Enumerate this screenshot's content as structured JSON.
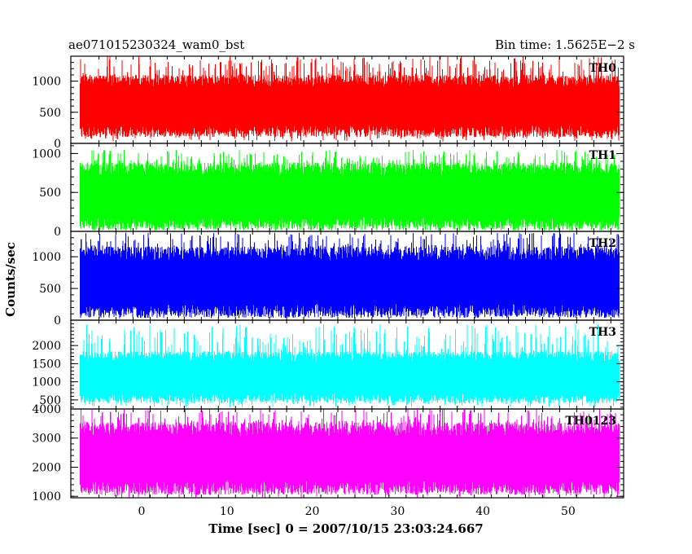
{
  "chart_data": {
    "type": "line",
    "title_left": "ae071015230324_wam0_bst",
    "title_right": "Bin time: 1.5625E−2 s",
    "xlabel": "Time [sec] 0 = 2007/10/15 23:03:24.667",
    "ylabel": "Counts/sec",
    "xlim": [
      -8.3,
      56.5
    ],
    "data_x_range": [
      -7.2,
      56.0
    ],
    "x_ticks": [
      0,
      10,
      20,
      30,
      40,
      50
    ],
    "x_tick_labels": [
      "0",
      "10",
      "20",
      "30",
      "40",
      "50"
    ],
    "grid": false,
    "panels": [
      {
        "name": "TH0",
        "color": "#ff0000",
        "ylim": [
          0,
          1400
        ],
        "y_ticks": [
          0,
          500,
          1000
        ],
        "y_tick_labels": [
          "0",
          "500",
          "1000"
        ],
        "band_low": 200,
        "band_high": 1000,
        "spike_min": 30,
        "spike_max": 1400
      },
      {
        "name": "TH1",
        "color": "#00ff00",
        "ylim": [
          0,
          1130
        ],
        "y_ticks": [
          0,
          500,
          1000
        ],
        "y_tick_labels": [
          "0",
          "500",
          "1000"
        ],
        "band_low": 100,
        "band_high": 800,
        "spike_min": 10,
        "spike_max": 1050
      },
      {
        "name": "TH2",
        "color": "#0000ff",
        "ylim": [
          0,
          1400
        ],
        "y_ticks": [
          0,
          500,
          1000
        ],
        "y_tick_labels": [
          "0",
          "500",
          "1000"
        ],
        "band_low": 150,
        "band_high": 1050,
        "spike_min": 30,
        "spike_max": 1380
      },
      {
        "name": "TH3",
        "color": "#00ffff",
        "ylim": [
          250,
          2700
        ],
        "y_ticks": [
          500,
          1000,
          1500,
          2000
        ],
        "y_tick_labels": [
          "500",
          "1000",
          "1500",
          "2000"
        ],
        "band_low": 550,
        "band_high": 1700,
        "spike_min": 300,
        "spike_max": 2600
      },
      {
        "name": "TH0123",
        "color": "#ff00ff",
        "ylim": [
          950,
          4000
        ],
        "y_ticks": [
          1000,
          2000,
          3000,
          4000
        ],
        "y_tick_labels": [
          "1000",
          "2000",
          "3000",
          "4000"
        ],
        "band_low": 1300,
        "band_high": 3300,
        "spike_min": 950,
        "spike_max": 4000
      }
    ]
  }
}
